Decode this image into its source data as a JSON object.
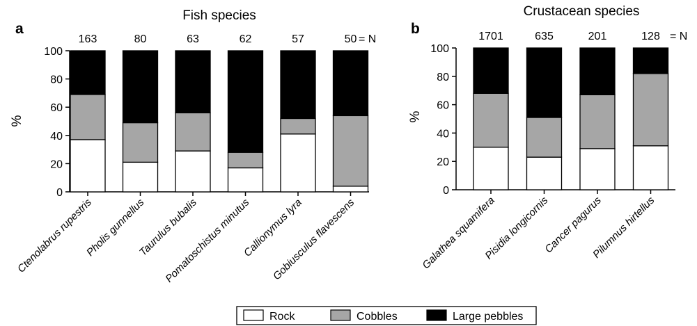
{
  "colors": {
    "Rock": "#ffffff",
    "Cobbles": "#a6a6a6",
    "Large pebbles": "#000000"
  },
  "legend": [
    "Rock",
    "Cobbles",
    "Large pebbles"
  ],
  "n_suffix": "= N",
  "chart_data": [
    {
      "panel": "a",
      "type": "bar",
      "stacked": true,
      "title": "Fish species",
      "ylabel": "%",
      "ylim": [
        0,
        100
      ],
      "yticks": [
        "0",
        "20",
        "40",
        "60",
        "80",
        "100"
      ],
      "categories": [
        "Ctenolabrus rupestris",
        "Pholis gunnellus",
        "Taurulus bubalis",
        "Pomatoschistus minutus",
        "Callionymus lyra",
        "Gobiusculus flavescens"
      ],
      "n": [
        "163",
        "80",
        "63",
        "62",
        "57",
        "50"
      ],
      "series": [
        {
          "name": "Rock",
          "values": [
            37,
            21,
            29,
            17,
            41,
            4
          ]
        },
        {
          "name": "Cobbles",
          "values": [
            32,
            28,
            27,
            11,
            11,
            50
          ]
        },
        {
          "name": "Large pebbles",
          "values": [
            31,
            51,
            44,
            72,
            48,
            46
          ]
        }
      ]
    },
    {
      "panel": "b",
      "type": "bar",
      "stacked": true,
      "title": "Crustacean species",
      "ylabel": "%",
      "ylim": [
        0,
        100
      ],
      "yticks": [
        "0",
        "20",
        "40",
        "60",
        "80",
        "100"
      ],
      "categories": [
        "Galathea squamifera",
        "Pisidia longicornis",
        "Cancer pagurus",
        "Pilumnus hirtellus"
      ],
      "n": [
        "1701",
        "635",
        "201",
        "128"
      ],
      "series": [
        {
          "name": "Rock",
          "values": [
            30,
            23,
            29,
            31
          ]
        },
        {
          "name": "Cobbles",
          "values": [
            38,
            28,
            38,
            51
          ]
        },
        {
          "name": "Large pebbles",
          "values": [
            32,
            49,
            33,
            18
          ]
        }
      ]
    }
  ]
}
